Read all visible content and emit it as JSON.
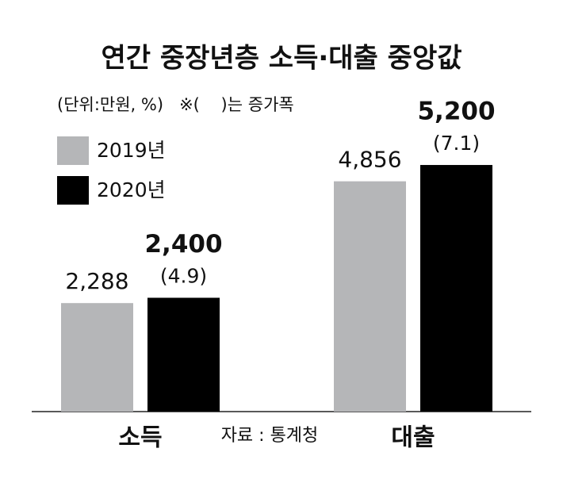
{
  "chart_data": {
    "type": "bar",
    "title": "연간 중장년층 소득·대출 중앙값",
    "subtitle": "(단위:만원, %)   ※(    )는 증가폭",
    "source": "자료 : 통계청",
    "categories": [
      "소득",
      "대출"
    ],
    "series": [
      {
        "name": "2019년",
        "color": "#b5b6b8",
        "values": [
          2288,
          4856
        ],
        "value_labels": [
          "2,288",
          "4,856"
        ]
      },
      {
        "name": "2020년",
        "color": "#000000",
        "values": [
          2400,
          5200
        ],
        "value_labels": [
          "2,400",
          "5,200"
        ],
        "change_labels": [
          "(4.9)",
          "(7.1)"
        ]
      }
    ]
  }
}
